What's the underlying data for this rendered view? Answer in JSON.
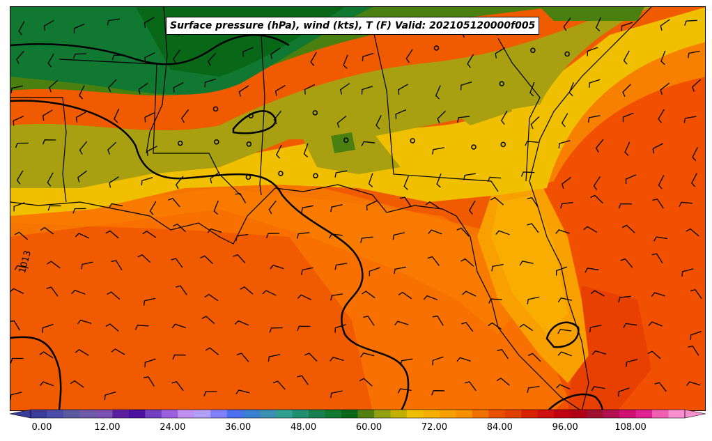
{
  "title": "Surface pressure (hPa), wind (kts), T (F) Valid: 202105120000f005",
  "isobar_label": "1013",
  "colorbar": {
    "tick_labels": [
      "0.00",
      "12.00",
      "24.00",
      "36.00",
      "48.00",
      "60.00",
      "72.00",
      "84.00",
      "96.00",
      "108.00"
    ],
    "colors": [
      "#3b3b9a",
      "#4b4ba8",
      "#5a5aa0",
      "#6a5aa8",
      "#7a50b0",
      "#5a20a0",
      "#4a10a0",
      "#7040c0",
      "#9a60e0",
      "#c090f0",
      "#b0a0f8",
      "#8080f8",
      "#4a70f0",
      "#3a80d0",
      "#3a90b0",
      "#30a090",
      "#209070",
      "#188050",
      "#107830",
      "#086818",
      "#508010",
      "#90a010",
      "#c0b000",
      "#f0c000",
      "#f8b000",
      "#f8a000",
      "#f89000",
      "#f07000",
      "#e85000",
      "#e04000",
      "#d82000",
      "#d01010",
      "#c00010",
      "#b00018",
      "#a01030",
      "#b01050",
      "#d01070",
      "#e02090",
      "#f060b0",
      "#f890d0"
    ]
  },
  "chart_data": {
    "type": "heatmap",
    "variable": "T (F)",
    "overlays": [
      "Surface pressure (hPa)",
      "wind (kts)"
    ],
    "colorbar_ticks": [
      0,
      12,
      24,
      36,
      48,
      60,
      72,
      84,
      96,
      108
    ],
    "valid": "202105120000f005"
  }
}
